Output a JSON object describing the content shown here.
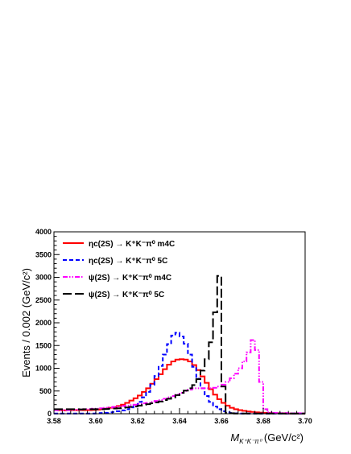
{
  "chart_data": {
    "type": "line",
    "style": "step-histogram",
    "title": "",
    "xlabel": {
      "prefix": "M",
      "sub": "K⁺K⁻π⁰",
      "unit": "(GeV/c²)"
    },
    "ylabel": "Events / 0.002 (GeV/c²)",
    "xlim": [
      3.58,
      3.7
    ],
    "ylim": [
      0,
      4000
    ],
    "bin_width": 0.002,
    "bin_start": 3.58,
    "xticks": [
      "3.58",
      "3.60",
      "3.62",
      "3.64",
      "3.66",
      "3.68",
      "3.70"
    ],
    "xtick_values": [
      3.58,
      3.6,
      3.62,
      3.64,
      3.66,
      3.68,
      3.7
    ],
    "yticks": [
      "0",
      "500",
      "1000",
      "1500",
      "2000",
      "2500",
      "3000",
      "3500",
      "4000"
    ],
    "ytick_values": [
      0,
      500,
      1000,
      1500,
      2000,
      2500,
      3000,
      3500,
      4000
    ],
    "grid": false,
    "legend_position": "top-left",
    "series": [
      {
        "name": "ηc(2S) → K⁺K⁻π⁰  m4C",
        "color": "#ff0000",
        "dash": "solid",
        "values": [
          80,
          80,
          75,
          80,
          80,
          80,
          80,
          80,
          80,
          85,
          90,
          100,
          110,
          130,
          150,
          170,
          200,
          240,
          290,
          340,
          400,
          480,
          560,
          660,
          760,
          870,
          980,
          1080,
          1150,
          1190,
          1200,
          1190,
          1150,
          1070,
          960,
          820,
          680,
          540,
          420,
          320,
          240,
          180,
          130,
          100,
          80,
          65,
          50,
          40,
          30,
          25,
          20,
          15,
          12,
          10,
          8,
          5,
          5,
          5,
          5,
          5
        ]
      },
      {
        "name": "ηc(2S) → K⁺K⁻π⁰  5C",
        "color": "#0000ff",
        "dash": "dashed",
        "values": [
          5,
          5,
          5,
          5,
          5,
          5,
          5,
          5,
          5,
          5,
          10,
          15,
          20,
          30,
          40,
          55,
          75,
          100,
          140,
          190,
          260,
          360,
          480,
          640,
          830,
          1050,
          1300,
          1530,
          1720,
          1780,
          1700,
          1540,
          1300,
          1030,
          770,
          560,
          390,
          260,
          160,
          100,
          55,
          30,
          15,
          8,
          5,
          5,
          5,
          5,
          5,
          5,
          5,
          5,
          5,
          5,
          5,
          5,
          5,
          5,
          5,
          5
        ]
      },
      {
        "name": "ψ(2S) → K⁺K⁻π⁰ m4C",
        "color": "#ff00ff",
        "dash": "dash-dot",
        "values": [
          80,
          75,
          80,
          80,
          85,
          90,
          90,
          100,
          100,
          110,
          110,
          120,
          130,
          140,
          150,
          160,
          170,
          180,
          190,
          200,
          220,
          230,
          240,
          260,
          280,
          300,
          330,
          360,
          390,
          420,
          460,
          500,
          530,
          560,
          560,
          560,
          560,
          560,
          570,
          600,
          640,
          700,
          780,
          880,
          1000,
          1150,
          1350,
          1620,
          1400,
          700,
          100,
          30,
          20,
          20,
          15,
          15,
          10,
          10,
          10,
          10
        ]
      },
      {
        "name": "ψ(2S) → K⁺K⁻π⁰  5C",
        "color": "#000000",
        "dash": "long-dash",
        "values": [
          100,
          100,
          100,
          100,
          100,
          100,
          95,
          100,
          100,
          100,
          100,
          100,
          105,
          110,
          115,
          120,
          130,
          140,
          150,
          160,
          180,
          200,
          210,
          230,
          250,
          270,
          300,
          330,
          360,
          410,
          460,
          510,
          560,
          630,
          760,
          950,
          1200,
          1570,
          2230,
          3030,
          600,
          20,
          10,
          5,
          5,
          5,
          5,
          5,
          5,
          5,
          5,
          5,
          5,
          5,
          5,
          5,
          5,
          5,
          5,
          5
        ]
      }
    ]
  }
}
